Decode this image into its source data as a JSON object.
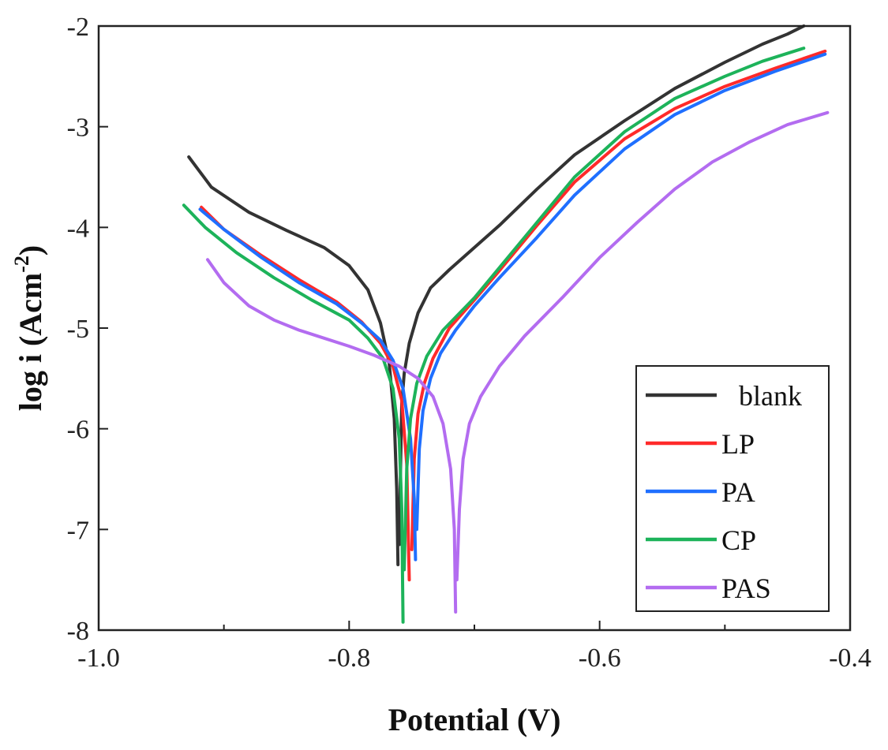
{
  "chart_data": {
    "type": "line",
    "title": "",
    "xlabel": "Potential (V)",
    "ylabel": "log i (Acm",
    "ylabel_sup": "-2",
    "ylabel_close": ")",
    "xlim": [
      -1.0,
      -0.4
    ],
    "ylim": [
      -8,
      -2
    ],
    "x_ticks": [
      -1.0,
      -0.8,
      -0.6,
      -0.4
    ],
    "x_tick_labels": [
      "-1.0",
      "-0.8",
      "-0.6",
      "-0.4"
    ],
    "y_ticks": [
      -8,
      -7,
      -6,
      -5,
      -4,
      -3,
      -2
    ],
    "y_tick_labels": [
      "-8",
      "-7",
      "-6",
      "-5",
      "-4",
      "-3",
      "-2"
    ],
    "grid": false,
    "legend_position": "bottom-right",
    "series": [
      {
        "name": "blank",
        "color": "#333333",
        "points": [
          [
            -0.928,
            -3.3
          ],
          [
            -0.91,
            -3.6
          ],
          [
            -0.88,
            -3.85
          ],
          [
            -0.85,
            -4.03
          ],
          [
            -0.82,
            -4.2
          ],
          [
            -0.8,
            -4.38
          ],
          [
            -0.785,
            -4.62
          ],
          [
            -0.775,
            -4.95
          ],
          [
            -0.768,
            -5.35
          ],
          [
            -0.764,
            -5.9
          ],
          [
            -0.762,
            -6.6
          ],
          [
            -0.761,
            -7.35
          ],
          null,
          [
            -0.76,
            -7.15
          ],
          [
            -0.759,
            -6.4
          ],
          [
            -0.758,
            -5.75
          ],
          [
            -0.756,
            -5.45
          ],
          [
            -0.752,
            -5.15
          ],
          [
            -0.745,
            -4.85
          ],
          [
            -0.735,
            -4.6
          ],
          [
            -0.72,
            -4.42
          ],
          [
            -0.7,
            -4.2
          ],
          [
            -0.68,
            -3.98
          ],
          [
            -0.65,
            -3.62
          ],
          [
            -0.62,
            -3.28
          ],
          [
            -0.58,
            -2.94
          ],
          [
            -0.54,
            -2.62
          ],
          [
            -0.5,
            -2.36
          ],
          [
            -0.47,
            -2.18
          ],
          [
            -0.45,
            -2.08
          ],
          [
            -0.437,
            -2.0
          ]
        ]
      },
      {
        "name": "LP",
        "color": "#ff2a2a",
        "points": [
          [
            -0.918,
            -3.8
          ],
          [
            -0.9,
            -4.02
          ],
          [
            -0.87,
            -4.28
          ],
          [
            -0.84,
            -4.52
          ],
          [
            -0.81,
            -4.74
          ],
          [
            -0.79,
            -4.94
          ],
          [
            -0.775,
            -5.15
          ],
          [
            -0.765,
            -5.38
          ],
          [
            -0.758,
            -5.72
          ],
          [
            -0.754,
            -6.35
          ],
          [
            -0.752,
            -7.5
          ],
          null,
          [
            -0.75,
            -7.2
          ],
          [
            -0.748,
            -6.3
          ],
          [
            -0.745,
            -5.85
          ],
          [
            -0.74,
            -5.55
          ],
          [
            -0.733,
            -5.3
          ],
          [
            -0.72,
            -5.0
          ],
          [
            -0.7,
            -4.72
          ],
          [
            -0.68,
            -4.43
          ],
          [
            -0.65,
            -3.98
          ],
          [
            -0.62,
            -3.55
          ],
          [
            -0.58,
            -3.12
          ],
          [
            -0.54,
            -2.82
          ],
          [
            -0.5,
            -2.6
          ],
          [
            -0.46,
            -2.42
          ],
          [
            -0.42,
            -2.25
          ]
        ]
      },
      {
        "name": "PA",
        "color": "#1f6fff",
        "points": [
          [
            -0.919,
            -3.82
          ],
          [
            -0.9,
            -4.02
          ],
          [
            -0.87,
            -4.3
          ],
          [
            -0.84,
            -4.55
          ],
          [
            -0.81,
            -4.76
          ],
          [
            -0.79,
            -4.95
          ],
          [
            -0.775,
            -5.12
          ],
          [
            -0.765,
            -5.32
          ],
          [
            -0.757,
            -5.6
          ],
          [
            -0.751,
            -6.1
          ],
          [
            -0.748,
            -6.7
          ],
          [
            -0.747,
            -7.3
          ],
          null,
          [
            -0.746,
            -7.0
          ],
          [
            -0.744,
            -6.2
          ],
          [
            -0.741,
            -5.82
          ],
          [
            -0.735,
            -5.5
          ],
          [
            -0.727,
            -5.25
          ],
          [
            -0.715,
            -5.02
          ],
          [
            -0.7,
            -4.78
          ],
          [
            -0.68,
            -4.5
          ],
          [
            -0.65,
            -4.1
          ],
          [
            -0.62,
            -3.68
          ],
          [
            -0.58,
            -3.22
          ],
          [
            -0.54,
            -2.88
          ],
          [
            -0.5,
            -2.64
          ],
          [
            -0.46,
            -2.45
          ],
          [
            -0.42,
            -2.28
          ]
        ]
      },
      {
        "name": "CP",
        "color": "#1db35a",
        "points": [
          [
            -0.932,
            -3.78
          ],
          [
            -0.915,
            -4.0
          ],
          [
            -0.89,
            -4.25
          ],
          [
            -0.86,
            -4.5
          ],
          [
            -0.83,
            -4.72
          ],
          [
            -0.8,
            -4.92
          ],
          [
            -0.785,
            -5.1
          ],
          [
            -0.773,
            -5.3
          ],
          [
            -0.765,
            -5.6
          ],
          [
            -0.76,
            -6.1
          ],
          [
            -0.758,
            -6.8
          ],
          [
            -0.757,
            -7.92
          ],
          null,
          [
            -0.756,
            -7.4
          ],
          [
            -0.754,
            -6.4
          ],
          [
            -0.751,
            -5.9
          ],
          [
            -0.746,
            -5.55
          ],
          [
            -0.738,
            -5.28
          ],
          [
            -0.725,
            -5.02
          ],
          [
            -0.7,
            -4.7
          ],
          [
            -0.68,
            -4.4
          ],
          [
            -0.65,
            -3.95
          ],
          [
            -0.62,
            -3.5
          ],
          [
            -0.58,
            -3.05
          ],
          [
            -0.54,
            -2.72
          ],
          [
            -0.5,
            -2.5
          ],
          [
            -0.47,
            -2.35
          ],
          [
            -0.437,
            -2.22
          ]
        ]
      },
      {
        "name": "PAS",
        "color": "#b36cf0",
        "points": [
          [
            -0.913,
            -4.32
          ],
          [
            -0.9,
            -4.55
          ],
          [
            -0.88,
            -4.78
          ],
          [
            -0.86,
            -4.92
          ],
          [
            -0.84,
            -5.02
          ],
          [
            -0.82,
            -5.1
          ],
          [
            -0.8,
            -5.18
          ],
          [
            -0.78,
            -5.27
          ],
          [
            -0.76,
            -5.38
          ],
          [
            -0.745,
            -5.5
          ],
          [
            -0.733,
            -5.68
          ],
          [
            -0.725,
            -5.95
          ],
          [
            -0.719,
            -6.4
          ],
          [
            -0.716,
            -7.0
          ],
          [
            -0.715,
            -7.82
          ],
          null,
          [
            -0.714,
            -7.5
          ],
          [
            -0.712,
            -6.8
          ],
          [
            -0.709,
            -6.3
          ],
          [
            -0.704,
            -5.95
          ],
          [
            -0.695,
            -5.68
          ],
          [
            -0.68,
            -5.38
          ],
          [
            -0.66,
            -5.08
          ],
          [
            -0.63,
            -4.7
          ],
          [
            -0.6,
            -4.3
          ],
          [
            -0.57,
            -3.95
          ],
          [
            -0.54,
            -3.62
          ],
          [
            -0.51,
            -3.35
          ],
          [
            -0.48,
            -3.15
          ],
          [
            -0.45,
            -2.98
          ],
          [
            -0.418,
            -2.86
          ]
        ]
      }
    ]
  }
}
